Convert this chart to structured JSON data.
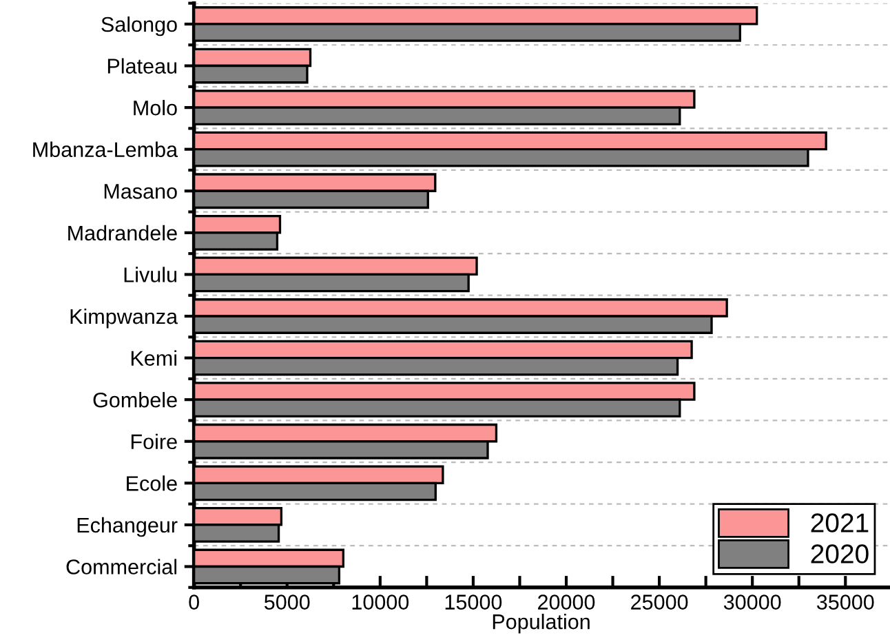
{
  "chart_data": {
    "type": "bar",
    "orientation": "horizontal",
    "xlabel": "Population",
    "categories": [
      "Salongo",
      "Plateau",
      "Molo",
      "Mbanza-Lemba",
      "Masano",
      "Madrandele",
      "Livulu",
      "Kimpwanza",
      "Kemi",
      "Gombele",
      "Foire",
      "Ecole",
      "Echangeur",
      "Commercial"
    ],
    "series": [
      {
        "name": "2021",
        "color": "#fc9696",
        "values": [
          30240,
          6250,
          26880,
          33960,
          12960,
          4620,
          15190,
          28630,
          26740,
          26880,
          16240,
          13370,
          4690,
          8020
        ]
      },
      {
        "name": "2020",
        "color": "#808080",
        "values": [
          29340,
          6080,
          26100,
          32990,
          12570,
          4470,
          14750,
          27810,
          25980,
          26100,
          15780,
          12980,
          4550,
          7800
        ]
      }
    ],
    "xlim": [
      0,
      37300
    ],
    "xticks": [
      0,
      {
        "value": 2500,
        "label": null
      },
      5000,
      {
        "value": 7500,
        "label": null
      },
      10000,
      {
        "value": 12500,
        "label": null
      },
      15000,
      {
        "value": 17500,
        "label": null
      },
      20000,
      {
        "value": 22500,
        "label": null
      },
      25000,
      {
        "value": 27500,
        "label": null
      },
      30000,
      {
        "value": 32500,
        "label": null
      },
      35000
    ],
    "grid": "y",
    "legend": "bottom right"
  }
}
